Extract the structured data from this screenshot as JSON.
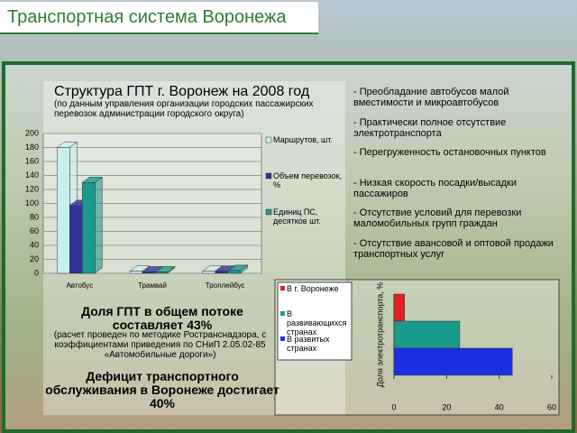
{
  "slide": {
    "title": "Транспортная система Воронежа",
    "bullets": [
      "- Преобладание автобусов малой вместимости и микроавтобусов",
      "- Практически полное отсутствие электротранспорта",
      "- Перегруженность остановочных пунктов",
      "- Низкая скорость посадки/высадки пассажиров",
      "- Отсутствие условий для перевозки маломобильных групп граждан",
      "- Отсутствие авансовой и оптовой продажи транспортных услуг"
    ],
    "share_text": "Доля ГПТ в общем потоке составляет 43%",
    "share_note": "(расчет проведен по методике Ространснадзора, с коэффициентами приведения по СНиП 2.05.02-85 «Автомобильные дороги»)",
    "deficit_text": "Дефицит транспортного обслуживания в Воронеже достигает 40%"
  },
  "chart_data": [
    {
      "type": "bar",
      "title": "Структура ГПТ г. Воронеж на 2008 год",
      "subtitle": "(по данным управления организации городских пассажирских перевозок администрации городского округа)",
      "categories": [
        "Автобус",
        "Трамвай",
        "Троллейбус"
      ],
      "series": [
        {
          "name": "Маршрутов, шт.",
          "color": "#c8f0f0",
          "values": [
            180,
            3,
            3
          ]
        },
        {
          "name": "Объем перевозок, %",
          "color": "#333399",
          "values": [
            97,
            2,
            3
          ]
        },
        {
          "name": "Единиц ПС, десятков шт.",
          "color": "#1a9a8a",
          "values": [
            130,
            2,
            4
          ]
        }
      ],
      "ylim": [
        0,
        200
      ],
      "yticks": [
        0,
        20,
        40,
        60,
        80,
        100,
        120,
        140,
        160,
        180,
        200
      ],
      "grid": true
    },
    {
      "type": "hbar",
      "ylabel": "Доля электротранспорта, %",
      "categories": [
        "В г. Воронеже",
        "В развивающихся странах",
        "В развитых странах"
      ],
      "values": [
        4,
        25,
        45
      ],
      "colors": [
        "#e02020",
        "#1a9a8a",
        "#1c2fe0"
      ],
      "xlim": [
        0,
        60
      ],
      "xticks": [
        0,
        20,
        40,
        60
      ]
    }
  ]
}
